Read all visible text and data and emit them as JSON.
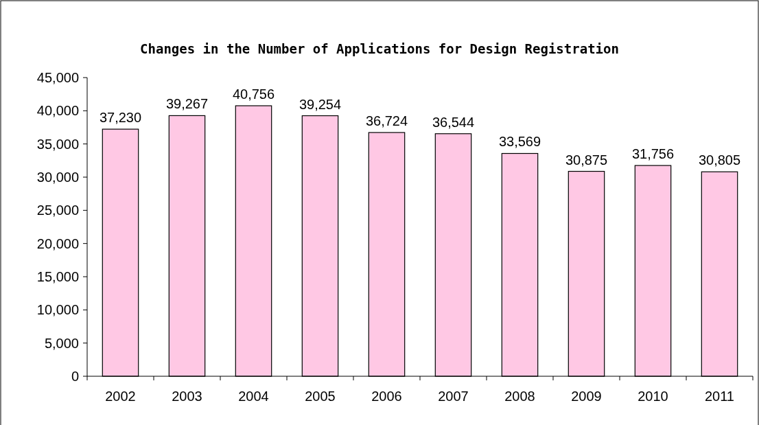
{
  "chart_data": {
    "type": "bar",
    "title": "Changes in the Number of Applications for Design Registration",
    "categories": [
      "2002",
      "2003",
      "2004",
      "2005",
      "2006",
      "2007",
      "2008",
      "2009",
      "2010",
      "2011"
    ],
    "values": [
      37230,
      39267,
      40756,
      39254,
      36724,
      36544,
      33569,
      30875,
      31756,
      30805
    ],
    "color": "#ffc8e4",
    "ylim": [
      0,
      45000
    ],
    "yticks": [
      {
        "value": 0,
        "label": "0"
      },
      {
        "value": 5000,
        "label": "5,000"
      },
      {
        "value": 10000,
        "label": "10,000"
      },
      {
        "value": 15000,
        "label": "15,000"
      },
      {
        "value": 20000,
        "label": "20,000"
      },
      {
        "value": 25000,
        "label": "25,000"
      },
      {
        "value": 30000,
        "label": "30,000"
      },
      {
        "value": 35000,
        "label": "35,000"
      },
      {
        "value": 40000,
        "label": "40,000"
      },
      {
        "value": 45000,
        "label": "45,000"
      }
    ],
    "value_labels": [
      "37,230",
      "39,267",
      "40,756",
      "39,254",
      "36,724",
      "36,544",
      "33,569",
      "30,875",
      "31,756",
      "30,805"
    ],
    "grid": false
  }
}
